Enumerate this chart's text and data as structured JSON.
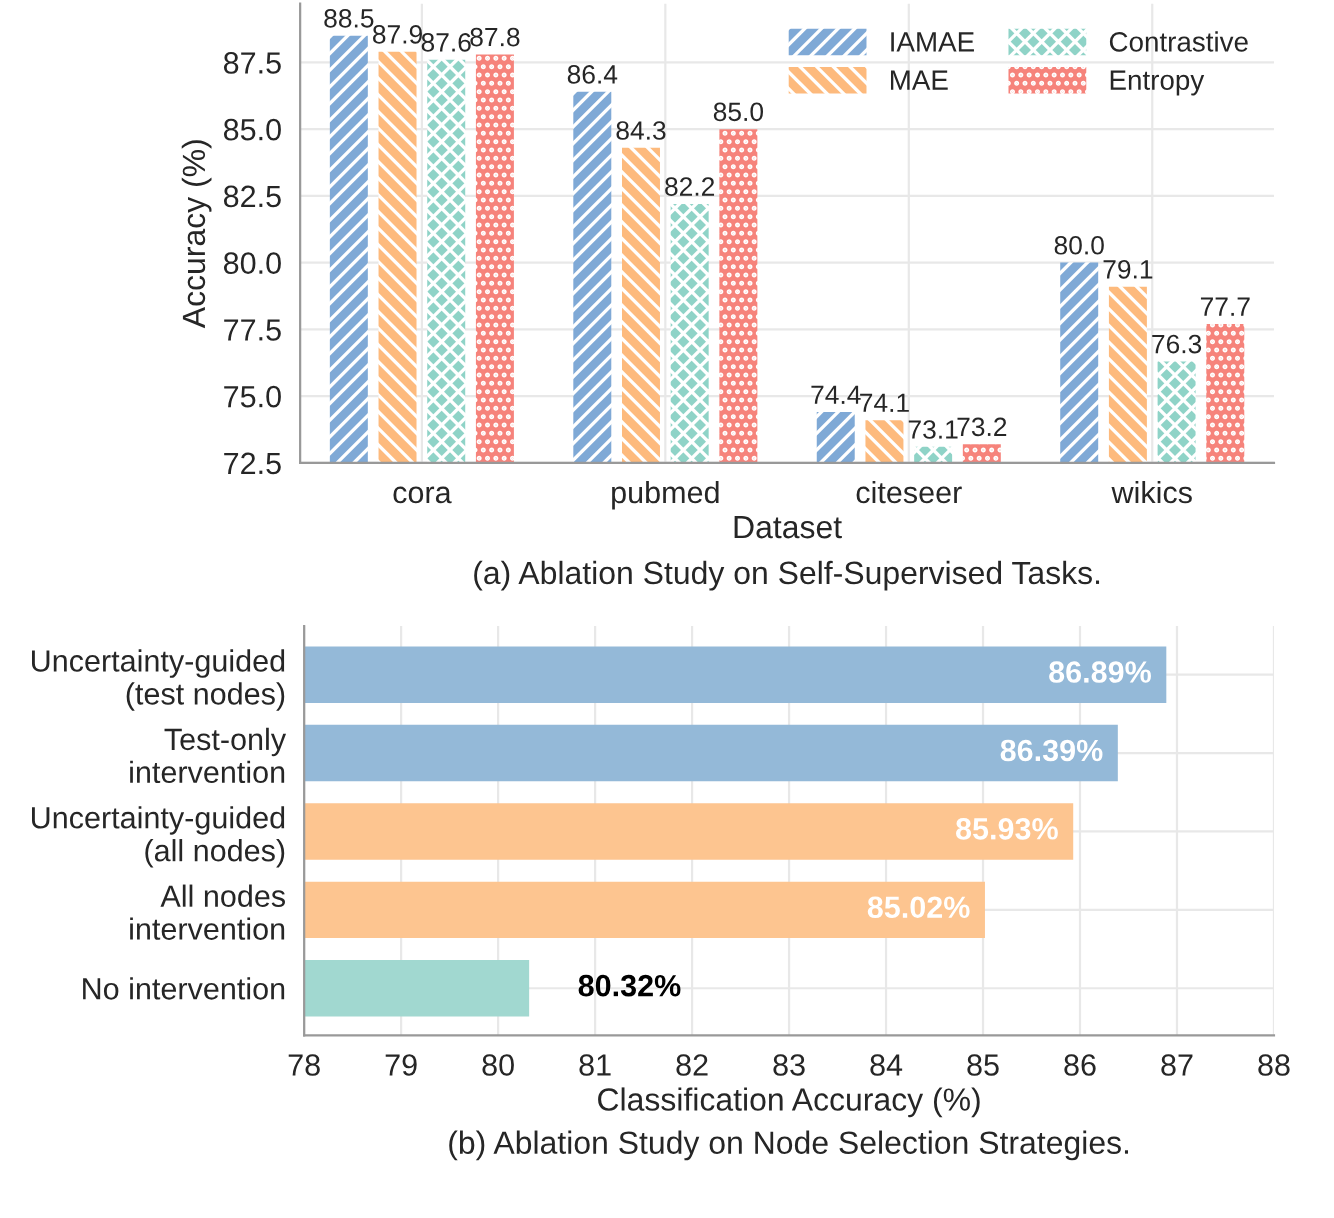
{
  "chart_data": [
    {
      "type": "bar",
      "title": "(a) Ablation Study on Self-Supervised Tasks.",
      "xlabel": "Dataset",
      "ylabel": "Accuracy (%)",
      "categories": [
        "cora",
        "pubmed",
        "citeseer",
        "wikics"
      ],
      "series": [
        {
          "name": "IAMAE",
          "color": "#7fa9d6",
          "values": [
            88.5,
            86.4,
            74.4,
            80.0
          ],
          "value_labels": [
            "88.5",
            "86.4",
            "74.4",
            "80.0"
          ]
        },
        {
          "name": "MAE",
          "color": "#fdba7d",
          "values": [
            87.9,
            84.3,
            74.1,
            79.1
          ],
          "value_labels": [
            "87.9",
            "84.3",
            "74.1",
            "79.1"
          ]
        },
        {
          "name": "Contrastive",
          "color": "#8fd3c7",
          "values": [
            87.6,
            82.2,
            73.1,
            76.3
          ],
          "value_labels": [
            "87.6",
            "82.2",
            "73.1",
            "76.3"
          ]
        },
        {
          "name": "Entropy",
          "color": "#f6837b",
          "values": [
            87.8,
            85.0,
            73.2,
            77.7
          ],
          "value_labels": [
            "87.8",
            "85.0",
            "73.2",
            "77.7"
          ]
        }
      ],
      "ylim": [
        72.5,
        89.7
      ],
      "yticks": [
        72.5,
        {
          "value": 75,
          "label": "75.0"
        },
        77.5,
        {
          "value": 80,
          "label": "80.0"
        },
        82.5,
        {
          "value": 85,
          "label": "85.0"
        },
        87.5
      ],
      "grid": true,
      "legend": "top right"
    },
    {
      "type": "bar",
      "orientation": "horizontal",
      "title": "(b) Ablation Study on Node Selection Strategies.",
      "xlabel": "Classification Accuracy (%)",
      "categories": [
        "Uncertainty-guided\n(test nodes)",
        "Test-only\nintervention",
        "Uncertainty-guided\n(all nodes)",
        "All nodes\nintervention",
        "No intervention"
      ],
      "values": [
        86.89,
        86.39,
        85.93,
        85.02,
        80.32
      ],
      "colors": [
        "#94b9d8",
        "#94b9d8",
        "#fdc590",
        "#fdc590",
        "#a1d8d0"
      ],
      "value_labels": [
        "86.89%",
        "86.39%",
        "85.93%",
        "85.02%",
        "80.32%"
      ],
      "xlim": [
        78,
        88
      ],
      "xticks": [
        78,
        79,
        80,
        81,
        82,
        83,
        84,
        85,
        86,
        87,
        88
      ],
      "grid": true
    }
  ]
}
